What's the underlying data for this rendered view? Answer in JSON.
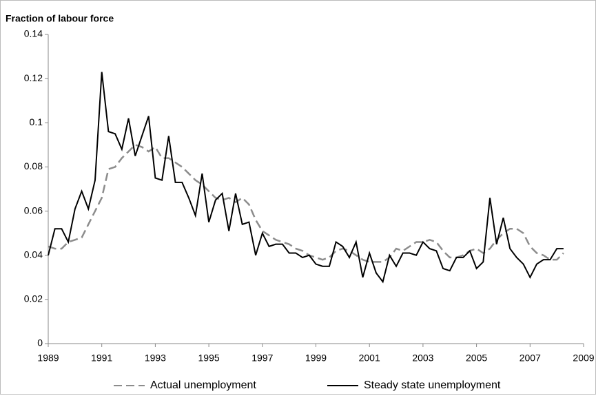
{
  "chart_data": {
    "type": "line",
    "y_axis_label": "Fraction of labour force",
    "x": [
      1989,
      1989.25,
      1989.5,
      1989.75,
      1990,
      1990.25,
      1990.5,
      1990.75,
      1991,
      1991.25,
      1991.5,
      1991.75,
      1992,
      1992.25,
      1992.5,
      1992.75,
      1993,
      1993.25,
      1993.5,
      1993.75,
      1994,
      1994.25,
      1994.5,
      1994.75,
      1995,
      1995.25,
      1995.5,
      1995.75,
      1996,
      1996.25,
      1996.5,
      1996.75,
      1997,
      1997.25,
      1997.5,
      1997.75,
      1998,
      1998.25,
      1998.5,
      1998.75,
      1999,
      1999.25,
      1999.5,
      1999.75,
      2000,
      2000.25,
      2000.5,
      2000.75,
      2001,
      2001.25,
      2001.5,
      2001.75,
      2002,
      2002.25,
      2002.5,
      2002.75,
      2003,
      2003.25,
      2003.5,
      2003.75,
      2004,
      2004.25,
      2004.5,
      2004.75,
      2005,
      2005.25,
      2005.5,
      2005.75,
      2006,
      2006.25,
      2006.5,
      2006.75,
      2007,
      2007.25,
      2007.5,
      2007.75,
      2008,
      2008.25
    ],
    "series": [
      {
        "name": "Actual unemployment",
        "color": "#8c8c8c",
        "dashed": true,
        "values": [
          0.044,
          0.043,
          0.043,
          0.046,
          0.047,
          0.048,
          0.054,
          0.06,
          0.066,
          0.079,
          0.08,
          0.084,
          0.087,
          0.09,
          0.089,
          0.087,
          0.089,
          0.084,
          0.084,
          0.082,
          0.08,
          0.077,
          0.074,
          0.072,
          0.069,
          0.066,
          0.065,
          0.066,
          0.064,
          0.066,
          0.063,
          0.056,
          0.051,
          0.049,
          0.047,
          0.046,
          0.045,
          0.043,
          0.042,
          0.04,
          0.039,
          0.038,
          0.039,
          0.042,
          0.043,
          0.042,
          0.04,
          0.038,
          0.037,
          0.037,
          0.037,
          0.039,
          0.043,
          0.042,
          0.044,
          0.046,
          0.046,
          0.047,
          0.046,
          0.042,
          0.039,
          0.039,
          0.04,
          0.042,
          0.043,
          0.041,
          0.043,
          0.047,
          0.05,
          0.052,
          0.052,
          0.05,
          0.044,
          0.041,
          0.04,
          0.038,
          0.038,
          0.041
        ]
      },
      {
        "name": "Steady state unemployment",
        "color": "#000000",
        "dashed": false,
        "values": [
          0.04,
          0.052,
          0.052,
          0.046,
          0.061,
          0.069,
          0.061,
          0.074,
          0.123,
          0.096,
          0.095,
          0.088,
          0.102,
          0.085,
          0.094,
          0.103,
          0.075,
          0.074,
          0.094,
          0.073,
          0.073,
          0.066,
          0.058,
          0.077,
          0.055,
          0.065,
          0.068,
          0.051,
          0.068,
          0.054,
          0.055,
          0.04,
          0.05,
          0.044,
          0.045,
          0.045,
          0.041,
          0.041,
          0.039,
          0.04,
          0.036,
          0.035,
          0.035,
          0.046,
          0.044,
          0.039,
          0.046,
          0.03,
          0.041,
          0.032,
          0.028,
          0.04,
          0.035,
          0.041,
          0.041,
          0.04,
          0.046,
          0.043,
          0.042,
          0.034,
          0.033,
          0.039,
          0.039,
          0.042,
          0.034,
          0.037,
          0.066,
          0.045,
          0.057,
          0.043,
          0.039,
          0.036,
          0.03,
          0.036,
          0.038,
          0.038,
          0.043,
          0.043
        ]
      }
    ],
    "xlim": [
      1989,
      2009
    ],
    "xticks": [
      1989,
      1991,
      1993,
      1995,
      1997,
      1999,
      2001,
      2003,
      2005,
      2007,
      2009
    ],
    "ylim": [
      0,
      0.14
    ],
    "yticks": [
      0,
      0.02,
      0.04,
      0.06,
      0.08,
      0.1,
      0.12,
      0.14
    ],
    "grid": false,
    "legend": "bottom"
  }
}
